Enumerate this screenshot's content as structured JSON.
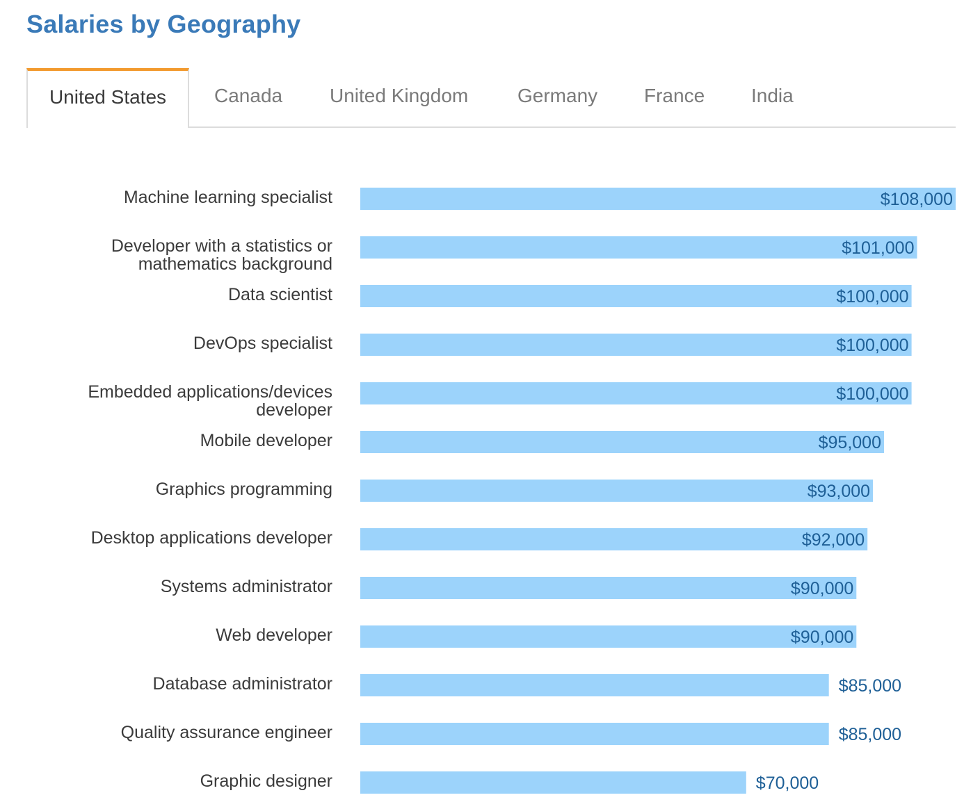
{
  "page": {
    "title": "Salaries by Geography"
  },
  "tabs": [
    {
      "label": "United States",
      "active": true
    },
    {
      "label": "Canada",
      "active": false
    },
    {
      "label": "United Kingdom",
      "active": false
    },
    {
      "label": "Germany",
      "active": false
    },
    {
      "label": "France",
      "active": false
    },
    {
      "label": "India",
      "active": false
    }
  ],
  "colors": {
    "title": "#3a7ab8",
    "active_tab_accent": "#f29a2e",
    "bar": "#9cd3fb",
    "value_label": "#1e5f96",
    "category_label": "#3b3b3b"
  },
  "chart_data": {
    "type": "bar",
    "orientation": "horizontal",
    "title": "",
    "xlabel": "",
    "ylabel": "",
    "xlim": [
      0,
      108000
    ],
    "grid": false,
    "categories": [
      [
        "Machine learning specialist"
      ],
      [
        "Developer with a statistics or",
        "mathematics background"
      ],
      [
        "Data scientist"
      ],
      [
        "DevOps specialist"
      ],
      [
        "Embedded applications/devices",
        "developer"
      ],
      [
        "Mobile developer"
      ],
      [
        "Graphics programming"
      ],
      [
        "Desktop applications developer"
      ],
      [
        "Systems administrator"
      ],
      [
        "Web developer"
      ],
      [
        "Database administrator"
      ],
      [
        "Quality assurance engineer"
      ],
      [
        "Graphic designer"
      ]
    ],
    "values": [
      108000,
      101000,
      100000,
      100000,
      100000,
      95000,
      93000,
      92000,
      90000,
      90000,
      85000,
      85000,
      70000
    ],
    "value_labels": [
      "$108,000",
      "$101,000",
      "$100,000",
      "$100,000",
      "$100,000",
      "$95,000",
      "$93,000",
      "$92,000",
      "$90,000",
      "$90,000",
      "$85,000",
      "$85,000",
      "$70,000"
    ]
  }
}
